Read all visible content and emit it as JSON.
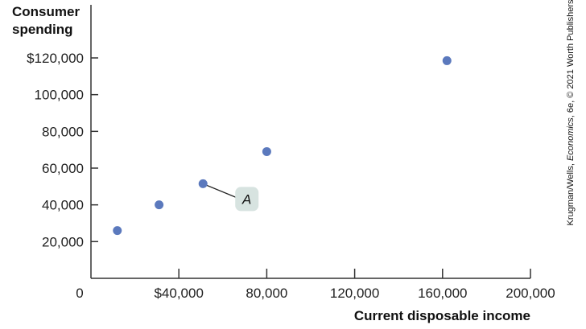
{
  "chart_data": {
    "type": "scatter",
    "title": "",
    "xlabel": "Current disposable income",
    "ylabel": [
      "Consumer",
      "spending"
    ],
    "xlim": [
      0,
      200000
    ],
    "ylim": [
      0,
      120000
    ],
    "x_ticks": [
      {
        "value": 0,
        "label": "0"
      },
      {
        "value": 40000,
        "label": "$40,000"
      },
      {
        "value": 80000,
        "label": "80,000"
      },
      {
        "value": 120000,
        "label": "120,000"
      },
      {
        "value": 160000,
        "label": "160,000"
      },
      {
        "value": 200000,
        "label": "200,000"
      }
    ],
    "y_ticks": [
      {
        "value": 20000,
        "label": "20,000"
      },
      {
        "value": 40000,
        "label": "40,000"
      },
      {
        "value": 60000,
        "label": "60,000"
      },
      {
        "value": 80000,
        "label": "80,000"
      },
      {
        "value": 100000,
        "label": "100,000"
      },
      {
        "value": 120000,
        "label": "$120,000"
      }
    ],
    "points": [
      {
        "x": 12000,
        "y": 26000
      },
      {
        "x": 31000,
        "y": 40000
      },
      {
        "x": 51000,
        "y": 51500
      },
      {
        "x": 80000,
        "y": 69000
      },
      {
        "x": 162000,
        "y": 118500
      }
    ],
    "annotations": [
      {
        "label": "A",
        "point_index": 2
      }
    ],
    "grid": false,
    "colors": {
      "point": "#5b79bd",
      "axis": "#333333",
      "annotation_fill": "#d7e3e0"
    }
  },
  "credit": {
    "text_before": "Krugman/Wells, ",
    "text_italic": "Economics",
    "text_after": ", 6e, © 2021 Worth Publishers"
  }
}
